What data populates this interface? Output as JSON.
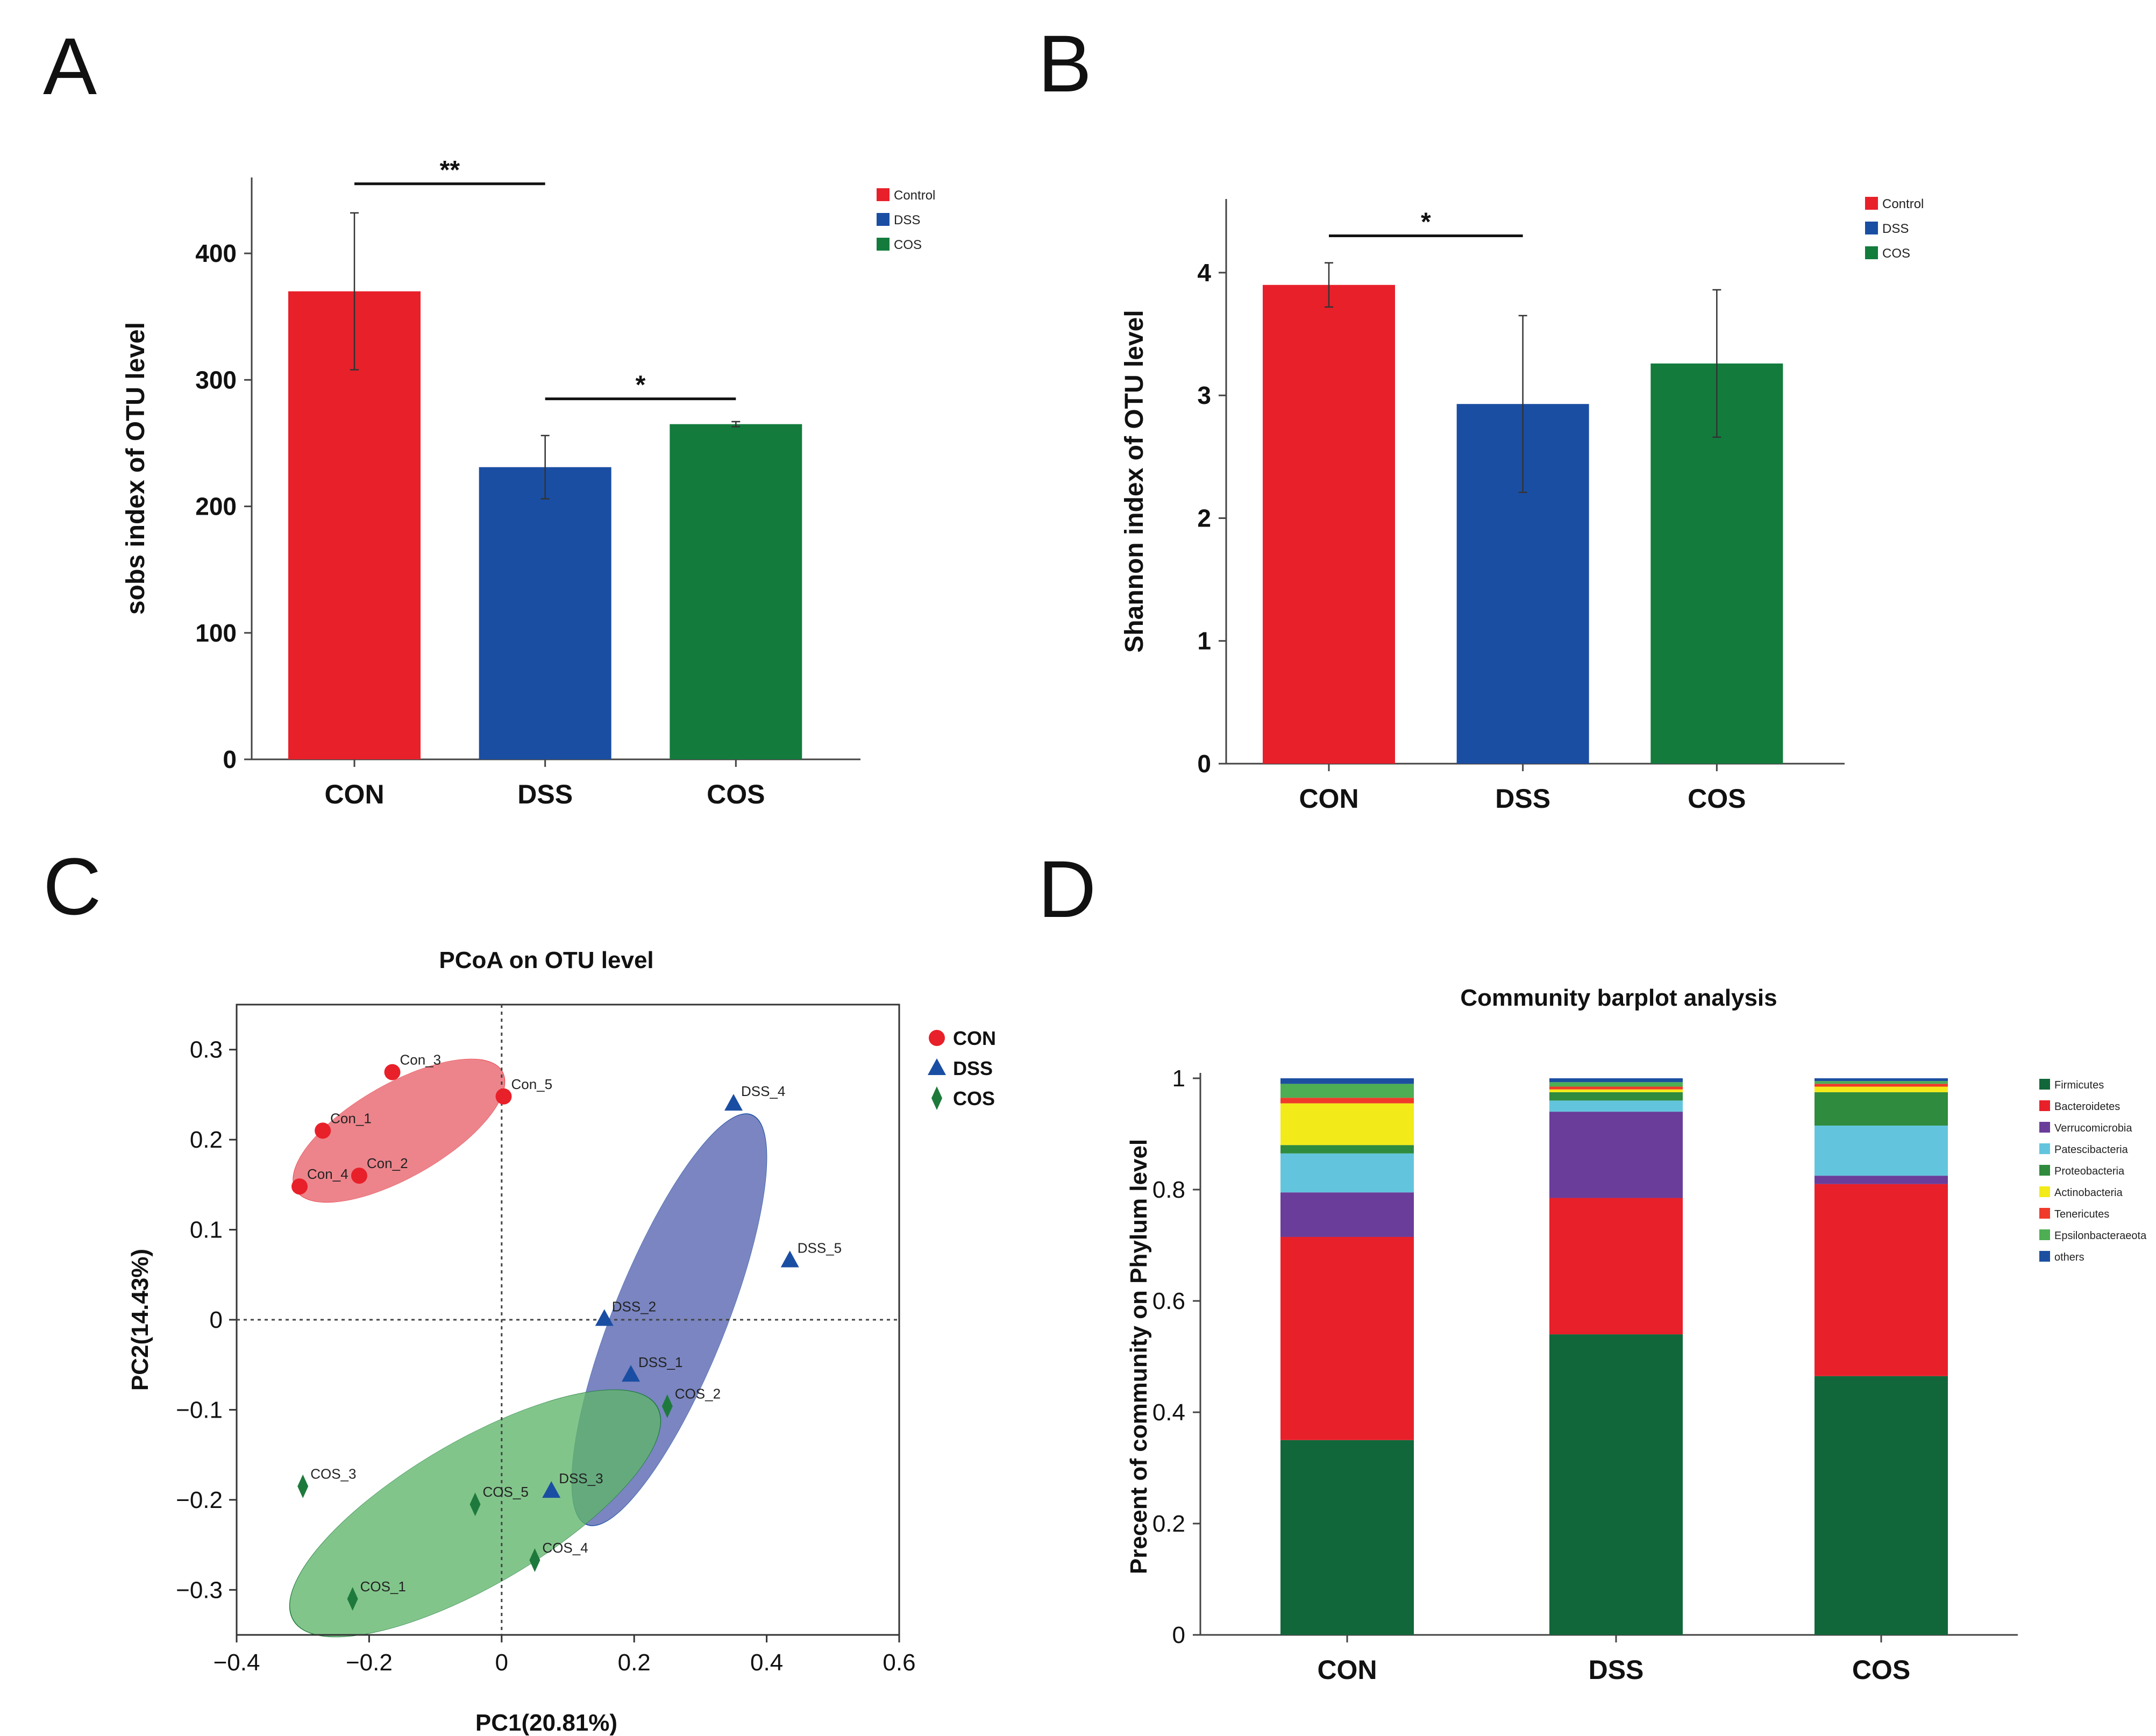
{
  "panels": {
    "A": "A",
    "B": "B",
    "C": "C",
    "D": "D"
  },
  "chart_data": [
    {
      "id": "A",
      "type": "bar",
      "categories": [
        "CON",
        "DSS",
        "COS"
      ],
      "values": [
        370,
        231,
        265
      ],
      "errors": [
        62,
        25,
        2
      ],
      "colors": [
        "#e8202a",
        "#1a4ea3",
        "#137c3d"
      ],
      "ylabel": "sobs index of OTU level",
      "ylim": [
        0,
        460
      ],
      "yticks": [
        0,
        100,
        200,
        300,
        400
      ],
      "legend": [
        {
          "label": "Control",
          "color": "#e8202a"
        },
        {
          "label": "DSS",
          "color": "#1a4ea3"
        },
        {
          "label": "COS",
          "color": "#137c3d"
        }
      ],
      "significance": [
        {
          "from": 0,
          "to": 1,
          "label": "**",
          "y": 455
        },
        {
          "from": 1,
          "to": 2,
          "label": "*",
          "y": 285
        }
      ]
    },
    {
      "id": "B",
      "type": "bar",
      "categories": [
        "CON",
        "DSS",
        "COS"
      ],
      "values": [
        3.9,
        2.93,
        3.26
      ],
      "errors": [
        0.18,
        0.72,
        0.6
      ],
      "colors": [
        "#e8202a",
        "#1a4ea3",
        "#137c3d"
      ],
      "ylabel": "Shannon index of OTU level",
      "ylim": [
        0,
        4.6
      ],
      "yticks": [
        0,
        1,
        2,
        3,
        4
      ],
      "legend": [
        {
          "label": "Control",
          "color": "#e8202a"
        },
        {
          "label": "DSS",
          "color": "#1a4ea3"
        },
        {
          "label": "COS",
          "color": "#137c3d"
        }
      ],
      "significance": [
        {
          "from": 0,
          "to": 1,
          "label": "*",
          "y": 4.3
        }
      ]
    },
    {
      "id": "C",
      "type": "scatter",
      "title": "PCoA on OTU level",
      "xlabel": "PC1(20.81%)",
      "ylabel": "PC2(14.43%)",
      "xlim": [
        -0.4,
        0.6
      ],
      "ylim": [
        -0.35,
        0.35
      ],
      "xticks": [
        -0.4,
        -0.2,
        0,
        0.2,
        0.4,
        0.6
      ],
      "xtick_labels": [
        "−0.4",
        "−0.2",
        "0",
        "0.2",
        "0.4",
        "0.6"
      ],
      "yticks": [
        -0.3,
        -0.2,
        -0.1,
        0,
        0.1,
        0.2,
        0.3
      ],
      "ytick_labels": [
        "−0.3",
        "−0.2",
        "−0.1",
        "0",
        "0.1",
        "0.2",
        "0.3"
      ],
      "groups": [
        {
          "name": "CON",
          "marker": "circle",
          "color": "#e8202a",
          "points": [
            {
              "label": "Con_3",
              "x": -0.165,
              "y": 0.275
            },
            {
              "label": "Con_5",
              "x": 0.003,
              "y": 0.248
            },
            {
              "label": "Con_1",
              "x": -0.27,
              "y": 0.21
            },
            {
              "label": "Con_4",
              "x": -0.305,
              "y": 0.148
            },
            {
              "label": "Con_2",
              "x": -0.215,
              "y": 0.16
            }
          ],
          "ellipse": {
            "cx": -0.155,
            "cy": 0.21,
            "rx": 0.17,
            "ry": 0.055,
            "angle_data_deg": 21,
            "fill": "#e8626a"
          }
        },
        {
          "name": "DSS",
          "marker": "triangle",
          "color": "#1a4ea3",
          "points": [
            {
              "label": "DSS_4",
              "x": 0.35,
              "y": 0.24
            },
            {
              "label": "DSS_5",
              "x": 0.435,
              "y": 0.066
            },
            {
              "label": "DSS_2",
              "x": 0.155,
              "y": 0.001
            },
            {
              "label": "DSS_1",
              "x": 0.195,
              "y": -0.061
            },
            {
              "label": "DSS_3",
              "x": 0.075,
              "y": -0.19
            }
          ],
          "ellipse": {
            "cx": 0.253,
            "cy": 0.0,
            "rx": 0.26,
            "ry": 0.08,
            "angle_data_deg": 60,
            "fill": "#5563b0"
          }
        },
        {
          "name": "COS",
          "marker": "diamond",
          "color": "#1e7a3c",
          "points": [
            {
              "label": "COS_2",
              "x": 0.25,
              "y": -0.096
            },
            {
              "label": "COS_3",
              "x": -0.3,
              "y": -0.185
            },
            {
              "label": "COS_5",
              "x": -0.04,
              "y": -0.205
            },
            {
              "label": "COS_4",
              "x": 0.05,
              "y": -0.267
            },
            {
              "label": "COS_1",
              "x": -0.225,
              "y": -0.31
            }
          ],
          "ellipse": {
            "cx": -0.04,
            "cy": -0.215,
            "rx": 0.3,
            "ry": 0.085,
            "angle_data_deg": 22,
            "fill": "#5fb56a"
          }
        }
      ]
    },
    {
      "id": "D",
      "type": "bar",
      "stacked": true,
      "title": "Community barplot analysis",
      "ylabel": "Precent of community on Phylum level",
      "categories": [
        "CON",
        "DSS",
        "COS"
      ],
      "ylim": [
        0,
        1
      ],
      "yticks": [
        0,
        0.2,
        0.4,
        0.6,
        0.8,
        1
      ],
      "ytick_labels": [
        "0",
        "0.2",
        "0.4",
        "0.6",
        "0.8",
        "1"
      ],
      "series": [
        {
          "name": "Firmicutes",
          "color": "#12673a",
          "values": [
            0.35,
            0.54,
            0.465
          ]
        },
        {
          "name": "Bacteroidetes",
          "color": "#e8202a",
          "values": [
            0.365,
            0.245,
            0.345
          ]
        },
        {
          "name": "Verrucomicrobia",
          "color": "#6a3d9a",
          "values": [
            0.08,
            0.155,
            0.015
          ]
        },
        {
          "name": "Patescibacteria",
          "color": "#63c5dd",
          "values": [
            0.07,
            0.02,
            0.09
          ]
        },
        {
          "name": "Proteobacteria",
          "color": "#2f8b3d",
          "values": [
            0.015,
            0.015,
            0.06
          ]
        },
        {
          "name": "Actinobacteria",
          "color": "#f3ea1a",
          "values": [
            0.075,
            0.005,
            0.01
          ]
        },
        {
          "name": "Tenericutes",
          "color": "#f03a2a",
          "values": [
            0.01,
            0.005,
            0.005
          ]
        },
        {
          "name": "Epsilonbacteraeota",
          "color": "#4dae54",
          "values": [
            0.025,
            0.008,
            0.005
          ]
        },
        {
          "name": "others",
          "color": "#1c4fa0",
          "values": [
            0.01,
            0.007,
            0.005
          ]
        }
      ]
    }
  ]
}
